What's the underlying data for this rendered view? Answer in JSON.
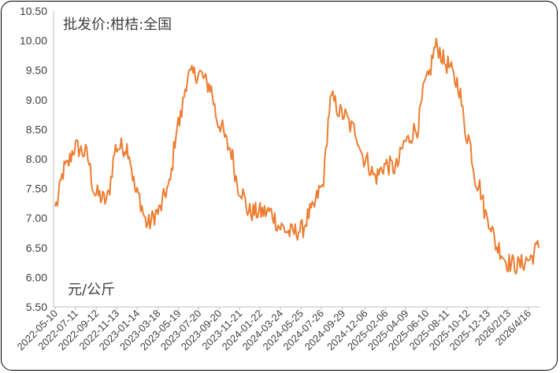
{
  "chart_data": {
    "type": "line",
    "title": "批发价:柑桔:全国",
    "ylabel": "元/公斤",
    "ylim": [
      5.5,
      10.5
    ],
    "yticks": [
      "5.50",
      "6.00",
      "6.50",
      "7.00",
      "7.50",
      "8.00",
      "8.50",
      "9.00",
      "9.50",
      "10.00",
      "10.50"
    ],
    "xticks": [
      "2022-05-10",
      "2022-07-11",
      "2022-09-12",
      "2022-11-13",
      "2023-01-14",
      "2023-03-18",
      "2023-05-19",
      "2023-07-20",
      "2023-09-20",
      "2023-11-21",
      "2024-01-22",
      "2024-03-24",
      "2024-05-25",
      "2024-07-26",
      "2024-09-29",
      "2024-12-06",
      "2025-02-06",
      "2025-04-09",
      "2025-06-10",
      "2025-08-11",
      "2025-10-12",
      "2025-12-13",
      "2026/2/13",
      "2026/4/16"
    ],
    "grid": false,
    "series": [
      {
        "color": "#ED7D31",
        "x": [
          "2022-05-10",
          "2022-06-10",
          "2022-07-11",
          "2022-08-10",
          "2022-09-12",
          "2022-10-12",
          "2022-11-13",
          "2022-12-14",
          "2023-01-14",
          "2023-02-15",
          "2023-03-18",
          "2023-04-18",
          "2023-05-19",
          "2023-06-19",
          "2023-07-20",
          "2023-08-20",
          "2023-09-20",
          "2023-10-20",
          "2023-11-21",
          "2023-12-22",
          "2024-01-22",
          "2024-02-22",
          "2024-03-24",
          "2024-04-24",
          "2024-05-25",
          "2024-06-25",
          "2024-07-26",
          "2024-08-26",
          "2024-09-29",
          "2024-11-02",
          "2024-12-06",
          "2025-01-06",
          "2025-02-06",
          "2025-03-08",
          "2025-04-09",
          "2025-05-10",
          "2025-06-10",
          "2025-07-10",
          "2025-08-11",
          "2025-09-11",
          "2025-10-12",
          "2025-11-12",
          "2025-12-13",
          "2026-01-13",
          "2026-02-13",
          "2026-03-15",
          "2026-04-16",
          "2026-05-17"
        ],
        "values": [
          7.2,
          7.85,
          8.2,
          8.1,
          7.4,
          7.3,
          8.2,
          8.2,
          7.4,
          6.9,
          7.1,
          7.5,
          8.6,
          9.4,
          9.45,
          9.25,
          8.6,
          8.2,
          7.5,
          7.1,
          7.1,
          7.1,
          6.85,
          6.75,
          6.8,
          7.1,
          7.5,
          9.0,
          8.75,
          8.5,
          8.0,
          7.7,
          7.9,
          7.85,
          8.3,
          8.5,
          9.3,
          9.9,
          9.6,
          9.3,
          8.4,
          7.6,
          7.0,
          6.5,
          6.25,
          6.2,
          6.3,
          6.5
        ]
      }
    ]
  }
}
